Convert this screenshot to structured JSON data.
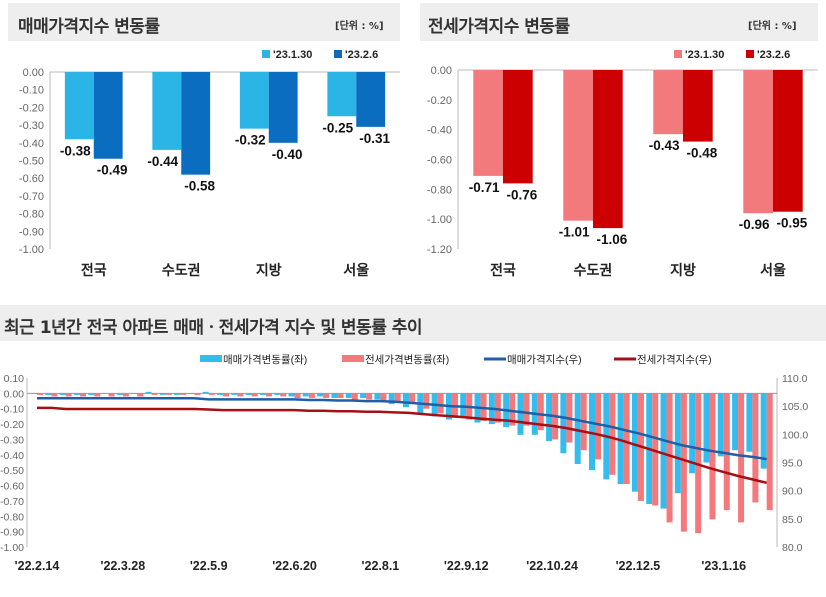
{
  "panels": [
    {
      "title": "매매가격지수 변동률",
      "unit": "[단위 : %]"
    },
    {
      "title": "전세가격지수 변동률",
      "unit": "[단위 : %]"
    },
    {
      "title": "최근 1년간 전국 아파트 매매ㆍ전세가격 지수 및 변동률 추이"
    }
  ],
  "chart_data": [
    {
      "type": "bar",
      "categories": [
        "전국",
        "수도권",
        "지방",
        "서울"
      ],
      "series": [
        {
          "name": "'23.1.30",
          "values": [
            -0.38,
            -0.44,
            -0.32,
            -0.25
          ],
          "color": "#2BB4E6"
        },
        {
          "name": "'23.2.6",
          "values": [
            -0.49,
            -0.58,
            -0.4,
            -0.31
          ],
          "color": "#0B6DC0"
        }
      ],
      "ylim": [
        -1.0,
        0.0
      ],
      "yticks": [
        "0.00",
        "-0.10",
        "-0.20",
        "-0.30",
        "-0.40",
        "-0.50",
        "-0.60",
        "-0.70",
        "-0.80",
        "-0.90",
        "-1.00"
      ],
      "legend": "top-right"
    },
    {
      "type": "bar",
      "categories": [
        "전국",
        "수도권",
        "지방",
        "서울"
      ],
      "series": [
        {
          "name": "'23.1.30",
          "values": [
            -0.71,
            -1.01,
            -0.43,
            -0.96
          ],
          "color": "#F27A7D"
        },
        {
          "name": "'23.2.6",
          "values": [
            -0.76,
            -1.06,
            -0.48,
            -0.95
          ],
          "color": "#CC0000"
        }
      ],
      "ylim": [
        -1.2,
        0.0
      ],
      "yticks": [
        "0.00",
        "-0.20",
        "-0.40",
        "-0.60",
        "-0.80",
        "-1.00",
        "-1.20"
      ],
      "legend": "top-right"
    },
    {
      "type": "bar+line",
      "xtick_labels": [
        "'22.2.14",
        "'22.3.28",
        "'22.5.9",
        "'22.6.20",
        "'22.8.1",
        "'22.9.12",
        "'22.10.24",
        "'22.12.5",
        "'23.1.16"
      ],
      "left_ylim": [
        -1.0,
        0.1
      ],
      "left_yticks": [
        "0.10",
        "0.00",
        "-0.10",
        "-0.20",
        "-0.30",
        "-0.40",
        "-0.50",
        "-0.60",
        "-0.70",
        "-0.80",
        "-0.90",
        "-1.00"
      ],
      "right_ylim": [
        80.0,
        110.0
      ],
      "right_yticks": [
        "110.0",
        "105.0",
        "100.0",
        "95.0",
        "90.0",
        "85.0",
        "80.0"
      ],
      "legend": "top",
      "series": [
        {
          "name": "매매가격변동률(좌)",
          "type": "bar",
          "axis": "left",
          "color": "#33BDEF",
          "values": [
            0.0,
            -0.01,
            -0.01,
            -0.01,
            -0.01,
            0.0,
            -0.01,
            0.0,
            0.01,
            -0.01,
            -0.01,
            0.0,
            0.01,
            -0.01,
            -0.01,
            -0.01,
            -0.01,
            -0.01,
            -0.02,
            -0.02,
            -0.02,
            -0.03,
            -0.03,
            -0.03,
            -0.04,
            -0.07,
            -0.09,
            -0.14,
            -0.15,
            -0.17,
            -0.16,
            -0.19,
            -0.2,
            -0.22,
            -0.27,
            -0.27,
            -0.31,
            -0.39,
            -0.46,
            -0.5,
            -0.56,
            -0.59,
            -0.64,
            -0.72,
            -0.75,
            -0.65,
            -0.52,
            -0.45,
            -0.41,
            -0.37,
            -0.38,
            -0.49
          ]
        },
        {
          "name": "전세가격변동률(좌)",
          "type": "bar",
          "axis": "left",
          "color": "#F4797C",
          "values": [
            -0.01,
            -0.02,
            -0.02,
            -0.02,
            -0.02,
            -0.02,
            -0.02,
            -0.02,
            -0.01,
            -0.01,
            -0.01,
            -0.01,
            -0.01,
            -0.02,
            -0.02,
            -0.02,
            -0.02,
            -0.02,
            -0.03,
            -0.03,
            -0.03,
            -0.03,
            -0.04,
            -0.04,
            -0.05,
            -0.06,
            -0.07,
            -0.1,
            -0.13,
            -0.16,
            -0.17,
            -0.18,
            -0.19,
            -0.21,
            -0.21,
            -0.24,
            -0.3,
            -0.32,
            -0.37,
            -0.43,
            -0.53,
            -0.59,
            -0.7,
            -0.73,
            -0.84,
            -0.9,
            -0.91,
            -0.82,
            -0.76,
            -0.84,
            -0.71,
            -0.76
          ]
        },
        {
          "name": "매매가격지수(우)",
          "type": "line",
          "axis": "right",
          "color": "#1F5FA8",
          "values": [
            106.4,
            106.4,
            106.4,
            106.4,
            106.4,
            106.4,
            106.4,
            106.4,
            106.4,
            106.4,
            106.4,
            106.4,
            106.2,
            106.2,
            106.2,
            106.2,
            106.2,
            106.2,
            106.2,
            106.1,
            106.1,
            106.0,
            106.0,
            105.9,
            105.9,
            105.8,
            105.6,
            105.4,
            105.2,
            105.0,
            104.9,
            104.7,
            104.5,
            104.2,
            103.9,
            103.6,
            103.3,
            102.9,
            102.4,
            101.9,
            101.4,
            100.8,
            100.2,
            99.5,
            98.8,
            98.1,
            97.6,
            97.1,
            96.7,
            96.3,
            96.0,
            95.6
          ]
        },
        {
          "name": "전세가격지수(우)",
          "type": "line",
          "axis": "right",
          "color": "#A50F15",
          "values": [
            104.7,
            104.7,
            104.5,
            104.5,
            104.5,
            104.5,
            104.5,
            104.5,
            104.5,
            104.5,
            104.5,
            104.5,
            104.4,
            104.3,
            104.3,
            104.3,
            104.3,
            104.3,
            104.3,
            104.2,
            104.2,
            104.1,
            104.1,
            104.0,
            104.0,
            103.9,
            103.8,
            103.6,
            103.4,
            103.2,
            103.0,
            102.8,
            102.6,
            102.4,
            102.1,
            101.8,
            101.5,
            101.1,
            100.6,
            100.1,
            99.5,
            98.8,
            98.0,
            97.2,
            96.4,
            95.6,
            94.8,
            94.0,
            93.3,
            92.6,
            92.0,
            91.4
          ]
        }
      ]
    }
  ]
}
